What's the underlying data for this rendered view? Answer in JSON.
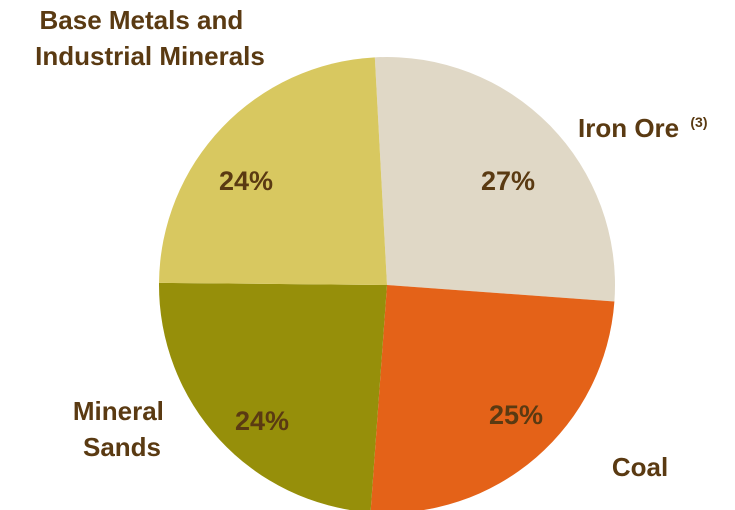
{
  "chart_data": {
    "type": "pie",
    "slices": [
      {
        "label": "Iron Ore",
        "label_suffix": "(3)",
        "value": 27,
        "value_label": "27%",
        "color": "#e0d8c6"
      },
      {
        "label": "Coal",
        "value": 25,
        "value_label": "25%",
        "color": "#e46218"
      },
      {
        "label": "Mineral Sands",
        "value": 24,
        "value_label": "24%",
        "color": "#968f0a"
      },
      {
        "label": "Base Metals and Industrial Minerals",
        "value": 24,
        "value_label": "24%",
        "color": "#d8c860"
      }
    ]
  }
}
